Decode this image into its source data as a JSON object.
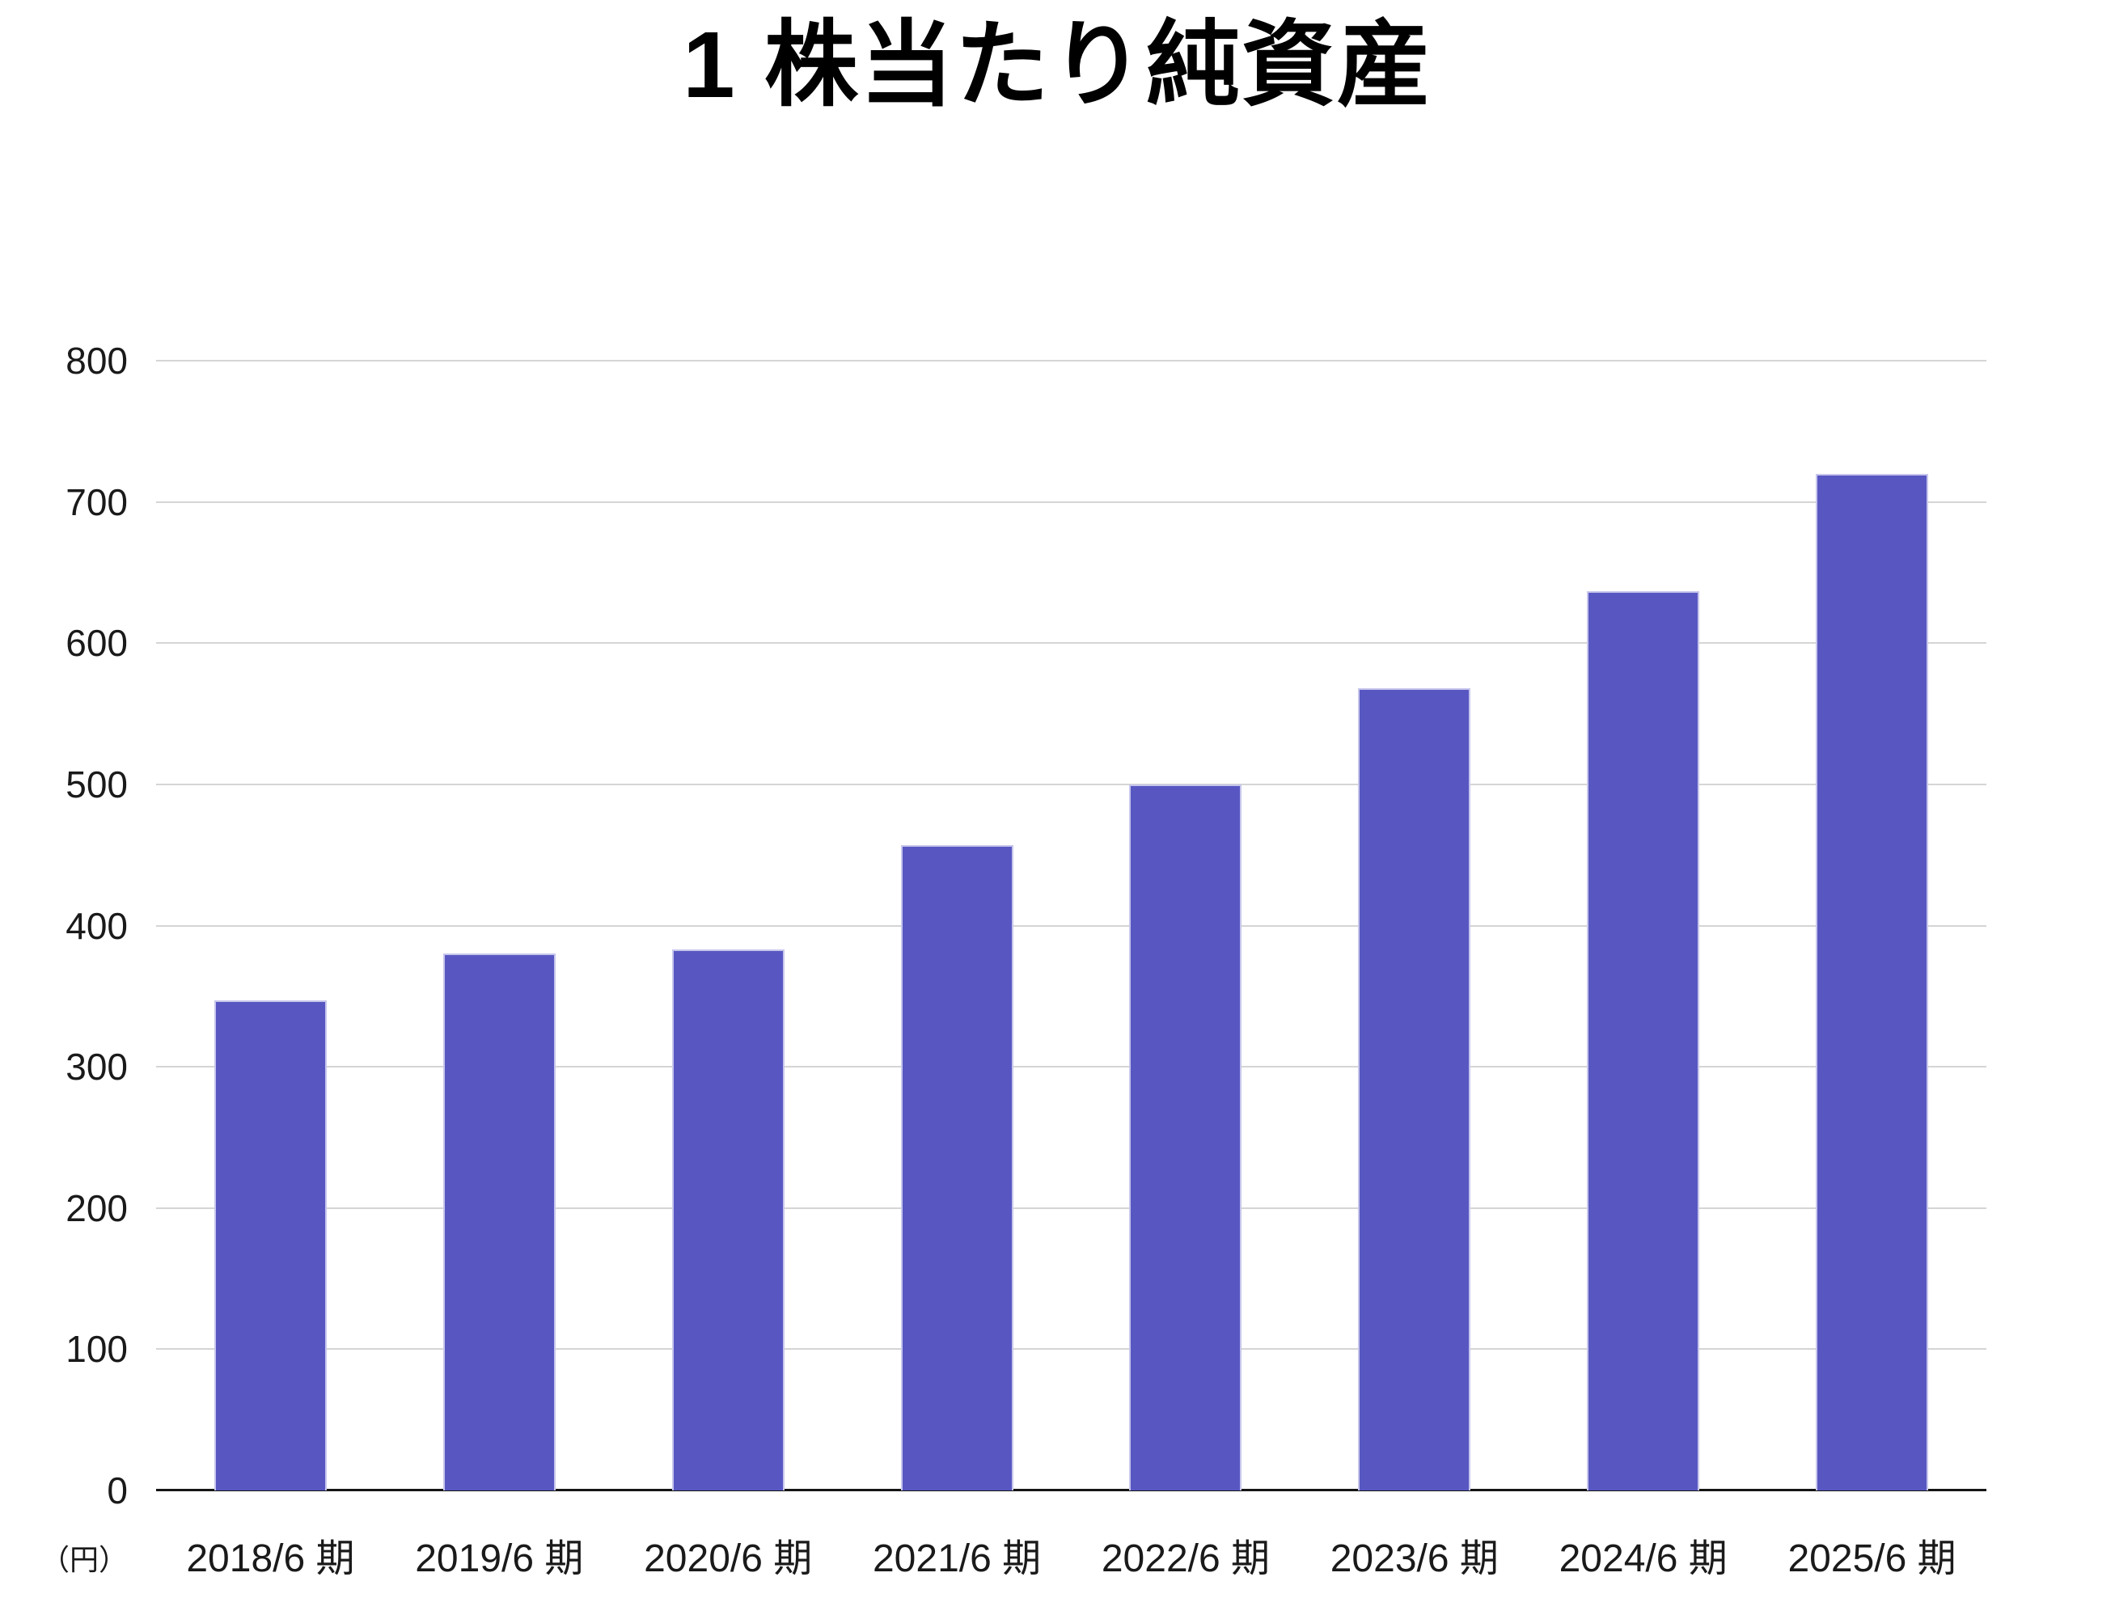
{
  "chart_data": {
    "type": "bar",
    "title": "1 株当たり純資産",
    "unit_label": "（円）",
    "categories": [
      "2018/6 期",
      "2019/6 期",
      "2020/6 期",
      "2021/6 期",
      "2022/6 期",
      "2023/6 期",
      "2024/6 期",
      "2025/6 期"
    ],
    "values": [
      347,
      380,
      383,
      457,
      500,
      568,
      637,
      720
    ],
    "ylim": [
      0,
      800
    ],
    "yticks": [
      0,
      100,
      200,
      300,
      400,
      500,
      600,
      700,
      800
    ],
    "grid": true,
    "legend_position": "none",
    "colors": {
      "bar_fill": "#5857C2",
      "bar_border": "#C7C6EC",
      "gridline": "#D5D5D5",
      "baseline": "#151515",
      "tick_text": "#1A1A1A",
      "title_text": "#000000"
    }
  }
}
